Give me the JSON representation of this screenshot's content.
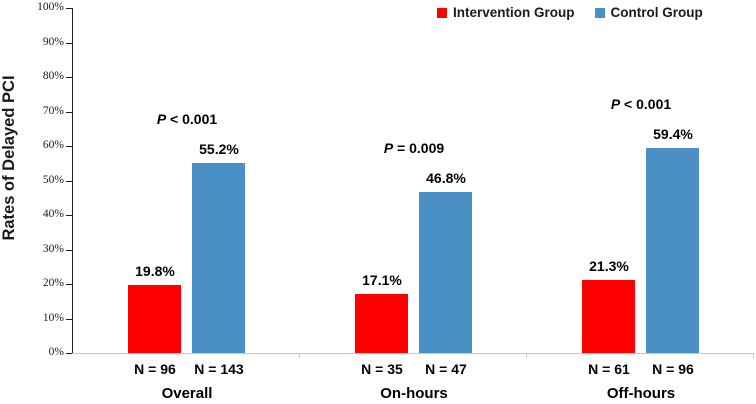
{
  "chart_data": {
    "type": "bar",
    "title": "",
    "xlabel": "",
    "ylabel": "Rates of Delayed PCI",
    "ylim": [
      0,
      100
    ],
    "ytick_step": 10,
    "yticks": [
      "0%",
      "10%",
      "20%",
      "30%",
      "40%",
      "50%",
      "60%",
      "70%",
      "80%",
      "90%",
      "100%"
    ],
    "categories": [
      "Overall",
      "On-hours",
      "Off-hours"
    ],
    "series": [
      {
        "name": "Intervention Group",
        "color": "#FF0000",
        "values": [
          19.8,
          17.1,
          21.3
        ],
        "value_labels": [
          "19.8%",
          "17.1%",
          "21.3%"
        ],
        "n_labels": [
          "N = 96",
          "N = 35",
          "N = 61"
        ]
      },
      {
        "name": "Control Group",
        "color": "#4A90C4",
        "values": [
          55.2,
          46.8,
          59.4
        ],
        "value_labels": [
          "55.2%",
          "46.8%",
          "59.4%"
        ],
        "n_labels": [
          "N = 143",
          "N = 47",
          "N = 96"
        ]
      }
    ],
    "p_values": [
      "P < 0.001",
      "P = 0.009",
      "P < 0.001"
    ],
    "legend_position": "top-right",
    "grid": false,
    "axis_color": "#1F1F1F",
    "baseline_color": "#C8C8C8"
  }
}
